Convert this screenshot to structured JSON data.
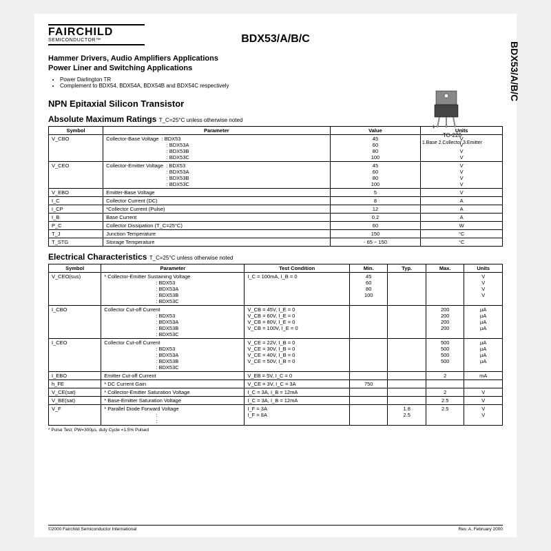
{
  "header": {
    "logo_name": "FAIRCHILD",
    "logo_sub": "SEMICONDUCTOR™",
    "title": "BDX53/A/B/C",
    "side_label": "BDX53/A/B/C"
  },
  "apps": {
    "line1": "Hammer Drivers, Audio Amplifiers Applications",
    "line2": "Power Liner and Switching Applications",
    "bullets": [
      "Power Darlington TR",
      "Complement to BDX54, BDX54A, BDX54B and BDX54C respectively"
    ]
  },
  "package": {
    "case": "TO-220",
    "pins": "1.Base   2.Collector   3.Emitter"
  },
  "transistor_type": "NPN Epitaxial Silicon Transistor",
  "abs_max": {
    "title": "Absolute Maximum Ratings",
    "note": "T_C=25°C unless otherwise noted",
    "headers": [
      "Symbol",
      "Parameter",
      "Value",
      "Units"
    ],
    "rows": [
      {
        "sym": "V_CBO",
        "param": "Collector-Base Voltage",
        "sublabels": [
          "BDX53",
          "BDX53A",
          "BDX53B",
          "BDX53C"
        ],
        "values": [
          "45",
          "60",
          "80",
          "100"
        ],
        "unit": "V"
      },
      {
        "sym": "V_CEO",
        "param": "Collector-Emitter Voltage",
        "sublabels": [
          "BDX53",
          "BDX53A",
          "BDX53B",
          "BDX53C"
        ],
        "values": [
          "45",
          "60",
          "80",
          "100"
        ],
        "unit": "V"
      },
      {
        "sym": "V_EBO",
        "param": "Emitter-Base Voltage",
        "value": "5",
        "unit": "V"
      },
      {
        "sym": "I_C",
        "param": "Collector Current (DC)",
        "value": "8",
        "unit": "A"
      },
      {
        "sym": "I_CP",
        "param": "*Collector Current (Pulse)",
        "value": "12",
        "unit": "A"
      },
      {
        "sym": "I_B",
        "param": "Base Current",
        "value": "0.2",
        "unit": "A"
      },
      {
        "sym": "P_C",
        "param": "Collector Dissipation (T_C=25°C)",
        "value": "60",
        "unit": "W"
      },
      {
        "sym": "T_J",
        "param": "Junction Temperature",
        "value": "150",
        "unit": "°C"
      },
      {
        "sym": "T_STG",
        "param": "Storage Temperature",
        "value": "- 65 ~ 150",
        "unit": "°C"
      }
    ]
  },
  "elec": {
    "title": "Electrical Characteristics",
    "note": "T_C=25°C unless otherwise noted",
    "headers": [
      "Symbol",
      "Parameter",
      "Test Condition",
      "Min.",
      "Typ.",
      "Max.",
      "Units"
    ],
    "rows": [
      {
        "sym": "V_CEO(sus)",
        "param": "* Collector-Emitter Sustaining Voltage",
        "subs": [
          "BDX53",
          "BDX53A",
          "BDX53B",
          "BDX53C"
        ],
        "cond": [
          "I_C = 100mA, I_B = 0",
          "",
          "",
          ""
        ],
        "min": [
          "45",
          "60",
          "80",
          "100"
        ],
        "typ": [
          "",
          "",
          "",
          ""
        ],
        "max": [
          "",
          "",
          "",
          ""
        ],
        "unit": "V"
      },
      {
        "sym": "I_CBO",
        "param": "Collector Cut-off Current",
        "subs": [
          "BDX53",
          "BDX53A",
          "BDX53B",
          "BDX53C"
        ],
        "cond": [
          "V_CB = 45V, I_E = 0",
          "V_CB = 60V, I_E = 0",
          "V_CB = 80V, I_E = 0",
          "V_CB = 100V, I_E = 0"
        ],
        "min": [
          "",
          "",
          "",
          ""
        ],
        "typ": [
          "",
          "",
          "",
          ""
        ],
        "max": [
          "200",
          "200",
          "200",
          "200"
        ],
        "unit": "µA"
      },
      {
        "sym": "I_CEO",
        "param": "Collector Cut-off Current",
        "subs": [
          "BDX53",
          "BDX53A",
          "BDX53B",
          "BDX53C"
        ],
        "cond": [
          "V_CE = 22V, I_B = 0",
          "V_CE = 30V, I_B = 0",
          "V_CE = 40V, I_B = 0",
          "V_CE = 50V, I_B = 0"
        ],
        "min": [
          "",
          "",
          "",
          ""
        ],
        "typ": [
          "",
          "",
          "",
          ""
        ],
        "max": [
          "500",
          "500",
          "500",
          "500"
        ],
        "unit": "µA"
      },
      {
        "sym": "I_EBO",
        "param": "Emitter Cut-off Current",
        "cond": "V_EB = 5V, I_C = 0",
        "max": "2",
        "unit": "mA"
      },
      {
        "sym": "h_FE",
        "param": "* DC Current Gain",
        "cond": "V_CE = 3V, I_C = 3A",
        "min": "750",
        "unit": ""
      },
      {
        "sym": "V_CE(sat)",
        "param": "* Collector-Emitter Saturation Voltage",
        "cond": "I_C = 3A, I_B = 12mA",
        "max": "2",
        "unit": "V"
      },
      {
        "sym": "V_BE(sat)",
        "param": "* Base-Emitter Saturation Voltage",
        "cond": "I_C = 3A, I_B = 12mA",
        "max": "2.5",
        "unit": "V"
      },
      {
        "sym": "V_F",
        "param": "* Parallel Diode Forward Voltage",
        "subs": [
          "",
          ""
        ],
        "cond": [
          "I_F = 3A",
          "I_F = 8A"
        ],
        "typ": [
          "1.8",
          "2.5"
        ],
        "max": [
          "2.5",
          ""
        ],
        "unit": "V"
      }
    ],
    "footnote": "* Pulse Test: PW=300µs, duty Cycle =1.5% Pulsed"
  },
  "footer": {
    "left": "©2000 Fairchild Semiconductor International",
    "right": "Rev. A, February 2000"
  }
}
